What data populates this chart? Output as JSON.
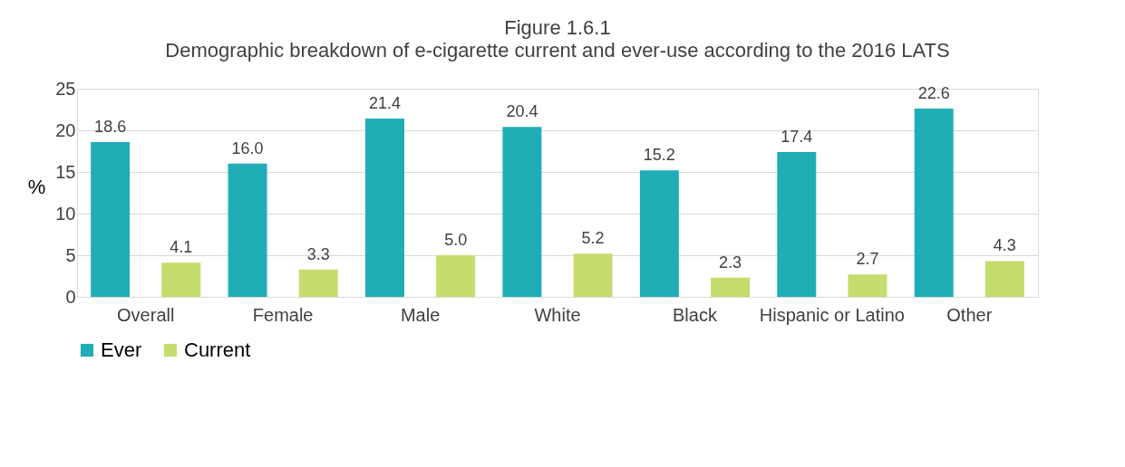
{
  "chart_data": {
    "type": "bar",
    "title": "Figure 1.6.1",
    "subtitle": "Demographic breakdown of e-cigarette current and ever-use according to the 2016 LATS",
    "ylabel": "%",
    "categories": [
      "Overall",
      "Female",
      "Male",
      "White",
      "Black",
      "Hispanic or Latino",
      "Other"
    ],
    "series": [
      {
        "name": "Ever",
        "color": "#20adb5",
        "values": [
          18.6,
          16.0,
          21.4,
          20.4,
          15.2,
          17.4,
          22.6
        ],
        "value_labels": [
          "18.6",
          "16.0",
          "21.4",
          "20.4",
          "15.2",
          "17.4",
          "22.6"
        ]
      },
      {
        "name": "Current",
        "color": "#c5dd6e",
        "values": [
          4.1,
          3.3,
          5.0,
          5.2,
          2.3,
          2.7,
          4.3
        ],
        "value_labels": [
          "4.1",
          "3.3",
          "5.0",
          "5.2",
          "2.3",
          "2.7",
          "4.3"
        ]
      }
    ],
    "ylim": [
      0,
      25
    ],
    "yticks": [
      0,
      5,
      10,
      15,
      20,
      25
    ],
    "grid": "y",
    "legend": "bottom"
  }
}
